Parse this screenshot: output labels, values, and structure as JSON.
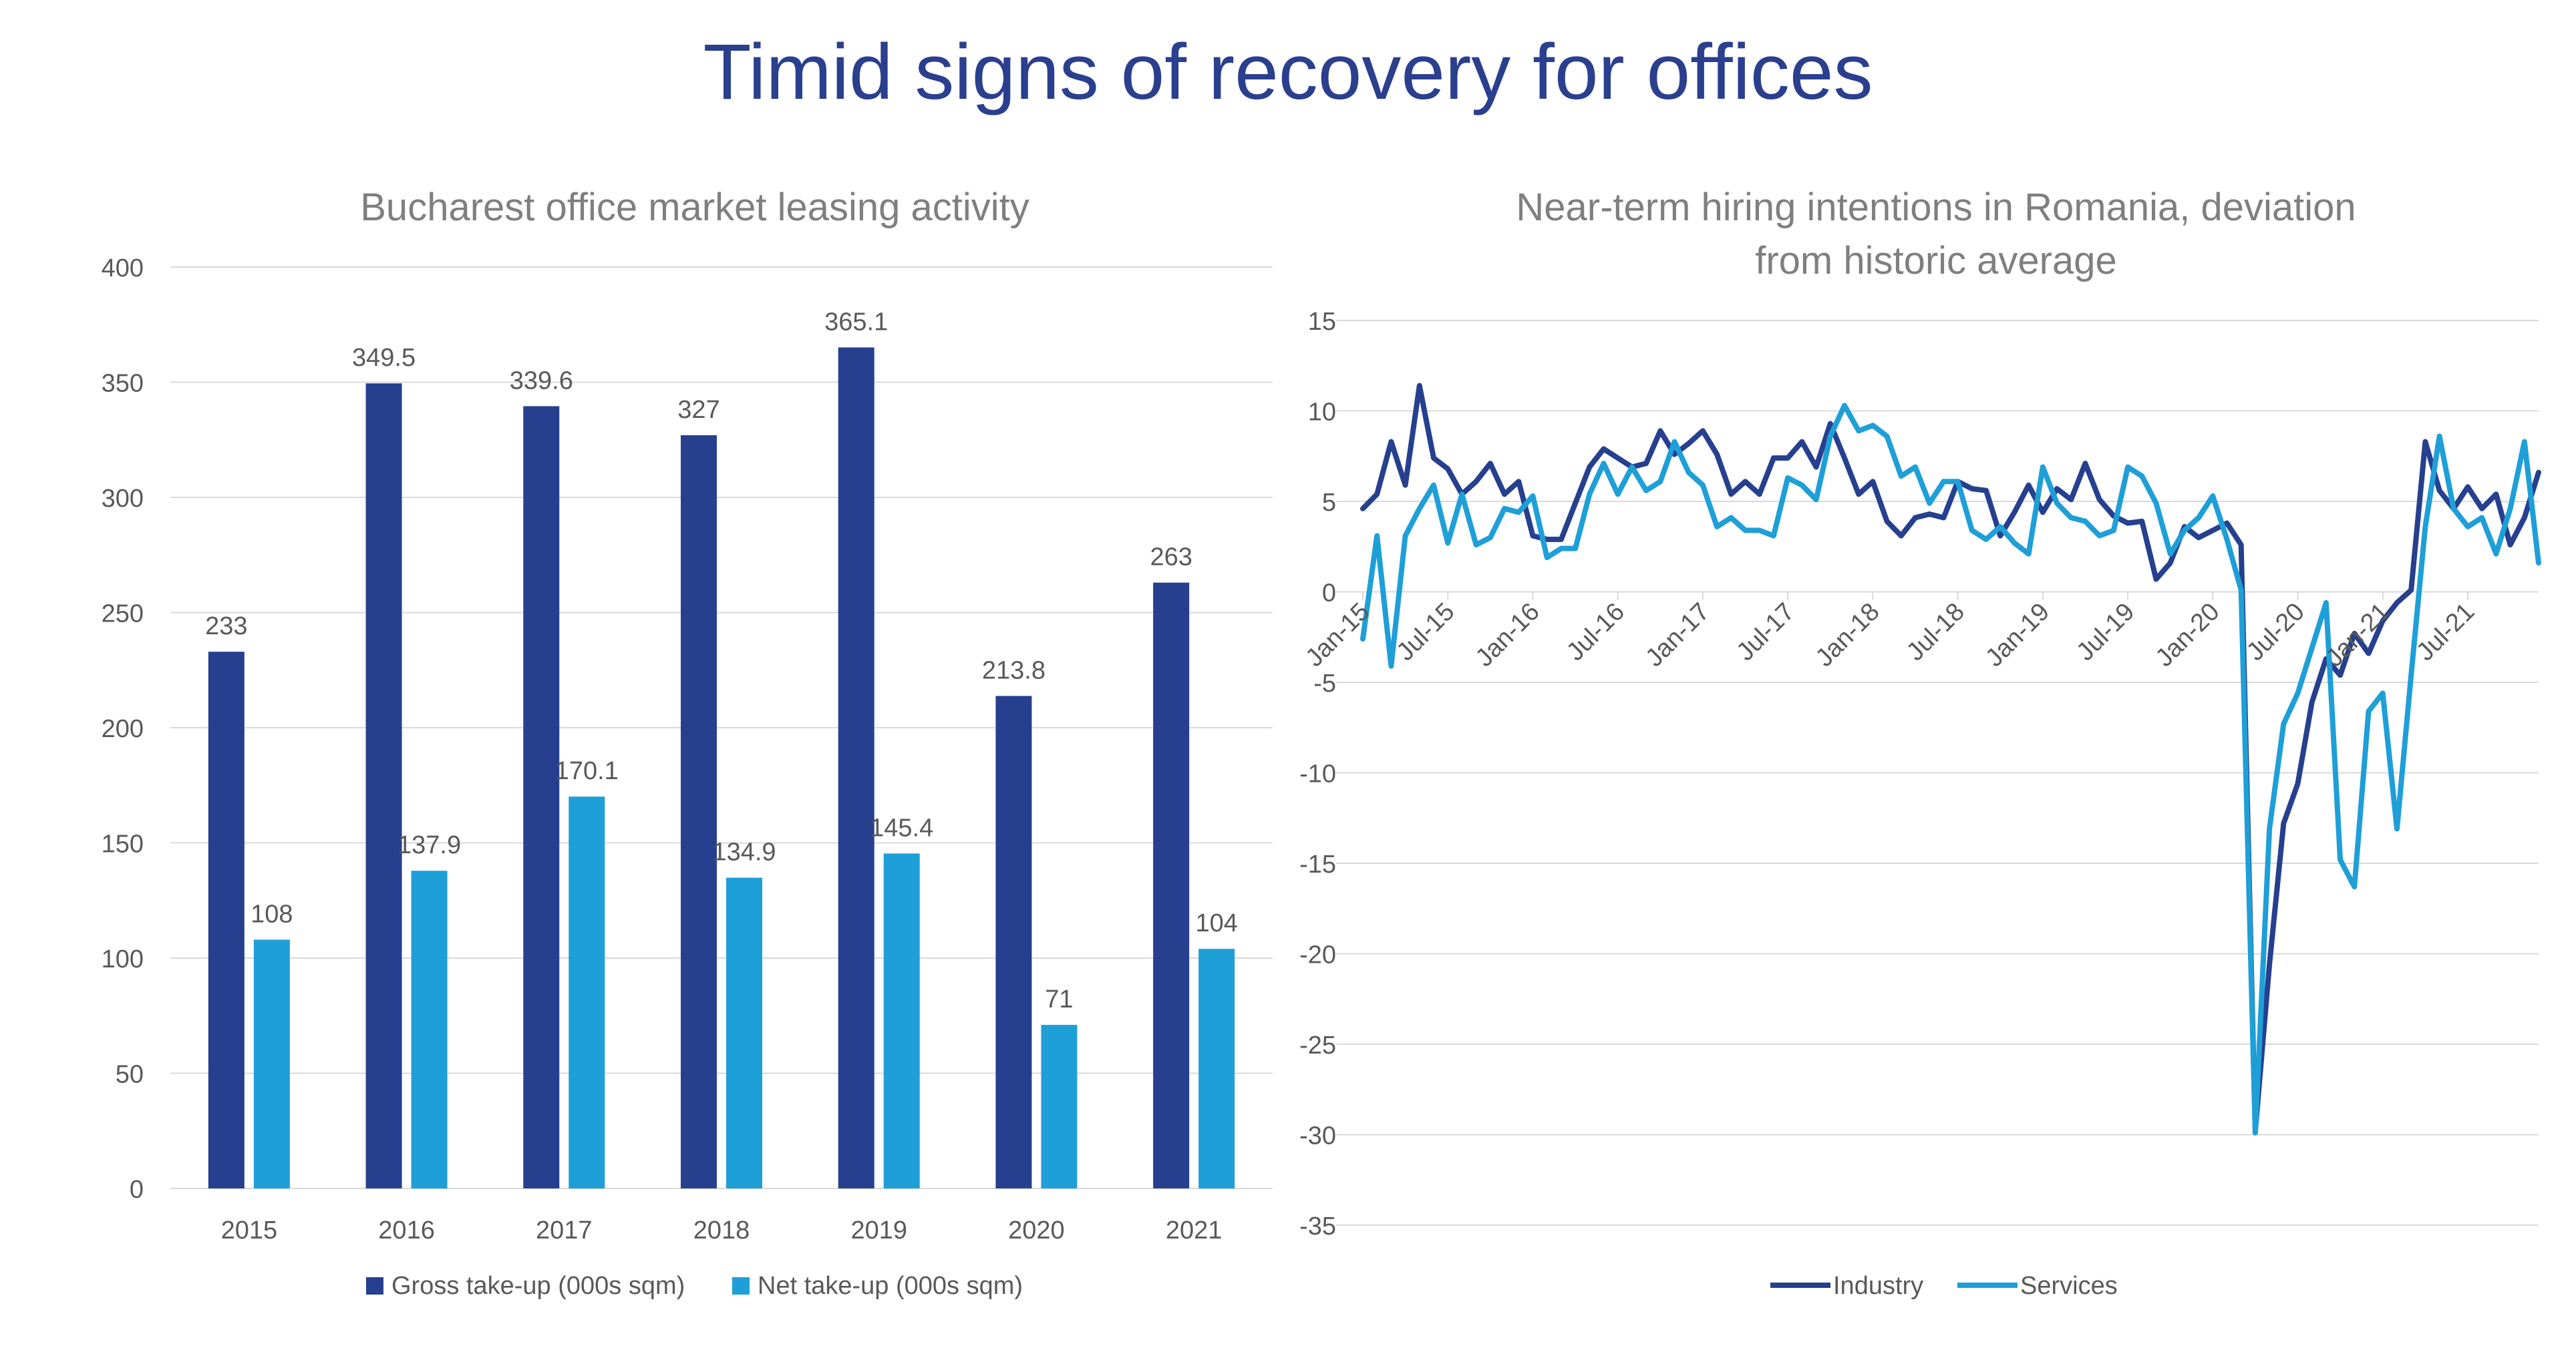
{
  "page": {
    "title": "Timid signs of recovery for offices"
  },
  "colors": {
    "title": "#2b3f8f",
    "gross": "#26408f",
    "net": "#1e9fd8",
    "industry": "#26408f",
    "services": "#1e9fd8",
    "grid": "#d9d9d9",
    "axis_text": "#595959",
    "chart_title": "#7f7f7f"
  },
  "chart_data": [
    {
      "type": "bar",
      "title": "Bucharest office market leasing activity",
      "categories": [
        "2015",
        "2016",
        "2017",
        "2018",
        "2019",
        "2020",
        "2021"
      ],
      "series": [
        {
          "name": "Gross take-up (000s sqm)",
          "values": [
            233,
            349.5,
            339.6,
            327,
            365.1,
            213.8,
            263
          ],
          "labels": [
            "233",
            "349.5",
            "339.6",
            "327",
            "365.1",
            "213.8",
            "263"
          ]
        },
        {
          "name": "Net take-up (000s sqm)",
          "values": [
            108,
            137.9,
            170.1,
            134.9,
            145.4,
            71,
            104
          ],
          "labels": [
            "108",
            "137.9",
            "170.1",
            "134.9",
            "145.4",
            "71",
            "104"
          ]
        }
      ],
      "ylim": [
        0,
        400
      ],
      "yticks": [
        "0",
        "50",
        "100",
        "150",
        "200",
        "250",
        "300",
        "350",
        "400"
      ],
      "grid": true,
      "legend": "bottom"
    },
    {
      "type": "line",
      "title": "Near-term hiring intentions in Romania, deviation from historic average",
      "x_tick_labels": [
        "Jan-15",
        "Jul-15",
        "Jan-16",
        "Jul-16",
        "Jan-17",
        "Jul-17",
        "Jan-18",
        "Jul-18",
        "Jan-19",
        "Jul-19",
        "Jan-20",
        "Jul-20",
        "Jan-21",
        "Jul-21"
      ],
      "x_start": "Jan-15",
      "x_end": "Dec-21",
      "ylim": [
        -35,
        15
      ],
      "yticks": [
        "-35",
        "-30",
        "-25",
        "-20",
        "-15",
        "-10",
        "-5",
        "0",
        "5",
        "10",
        "15"
      ],
      "grid": true,
      "legend": "bottom",
      "series": [
        {
          "name": "Industry",
          "values": [
            4.6,
            5.4,
            8.3,
            5.9,
            11.4,
            7.4,
            6.8,
            5.4,
            6.1,
            7.1,
            5.4,
            6.1,
            3.1,
            2.9,
            2.9,
            4.9,
            6.9,
            7.9,
            7.4,
            6.9,
            7.1,
            8.9,
            7.6,
            8.2,
            8.9,
            7.6,
            5.4,
            6.1,
            5.4,
            7.4,
            7.4,
            8.3,
            6.9,
            9.3,
            7.4,
            5.4,
            6.1,
            3.9,
            3.1,
            4.1,
            4.3,
            4.1,
            6.1,
            5.7,
            5.6,
            3.1,
            4.4,
            5.9,
            4.4,
            5.7,
            5.1,
            7.1,
            5.1,
            4.2,
            3.8,
            3.9,
            0.7,
            1.6,
            3.6,
            3.0,
            3.4,
            3.8,
            2.6,
            -29.8,
            -20.6,
            -12.8,
            -10.6,
            -6.1,
            -3.7,
            -4.6,
            -2.3,
            -3.4,
            -1.6,
            -0.6,
            0.1,
            8.3,
            5.6,
            4.6,
            5.8,
            4.6,
            5.4,
            2.6,
            4.1,
            6.6
          ]
        },
        {
          "name": "Services",
          "values": [
            -2.6,
            3.1,
            -4.1,
            3.1,
            4.6,
            5.9,
            2.7,
            5.4,
            2.6,
            3.0,
            4.6,
            4.4,
            5.3,
            1.9,
            2.4,
            2.4,
            5.4,
            7.1,
            5.4,
            6.9,
            5.6,
            6.1,
            8.3,
            6.6,
            5.9,
            3.6,
            4.1,
            3.4,
            3.4,
            3.1,
            6.3,
            5.9,
            5.1,
            8.6,
            10.3,
            8.9,
            9.2,
            8.6,
            6.4,
            6.9,
            4.9,
            6.1,
            6.1,
            3.4,
            2.9,
            3.6,
            2.7,
            2.1,
            6.9,
            4.9,
            4.1,
            3.9,
            3.1,
            3.4,
            6.9,
            6.4,
            4.9,
            2.1,
            3.4,
            4.1,
            5.3,
            2.9,
            0.1,
            -29.9,
            -13.1,
            -7.3,
            -5.6,
            -3.1,
            -0.6,
            -14.8,
            -16.3,
            -6.6,
            -5.6,
            -13.1,
            -4.6,
            3.6,
            8.6,
            4.6,
            3.6,
            4.1,
            2.1,
            4.6,
            8.3,
            1.6
          ]
        }
      ]
    }
  ]
}
